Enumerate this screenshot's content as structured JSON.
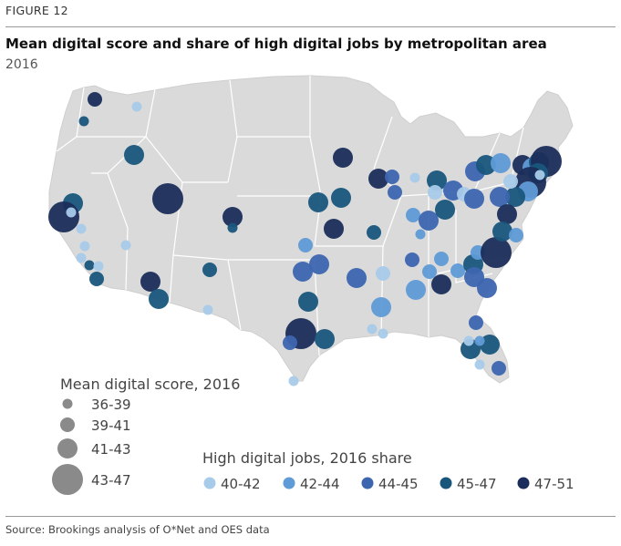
{
  "figure_label": "FIGURE 12",
  "title": "Mean digital score and share of high digital jobs by metropolitan area",
  "subtitle": "2016",
  "source": "Source: Brookings analysis of O*Net and OES data",
  "colors": {
    "land": "#dadada",
    "state_border": "#ffffff",
    "size_legend_fill": "#8a8a8a",
    "class_40_42": "#a9cbea",
    "class_42_44": "#5f9bd6",
    "class_44_45": "#3d66b0",
    "class_45_47": "#19567c",
    "class_47_51": "#1b2d5a"
  },
  "size_legend": {
    "title": "Mean digital score, 2016",
    "items": [
      {
        "label": "36-39",
        "class": "s1"
      },
      {
        "label": "39-41",
        "class": "s2"
      },
      {
        "label": "41-43",
        "class": "s3"
      },
      {
        "label": "43-47",
        "class": "s4"
      }
    ]
  },
  "color_legend": {
    "title": "High digital jobs, 2016 share",
    "items": [
      {
        "label": "40-42",
        "class": "c1"
      },
      {
        "label": "42-44",
        "class": "c2"
      },
      {
        "label": "44-45",
        "class": "c3"
      },
      {
        "label": "45-47",
        "class": "c4"
      },
      {
        "label": "47-51",
        "class": "c5"
      }
    ]
  },
  "metro_count": 87
}
